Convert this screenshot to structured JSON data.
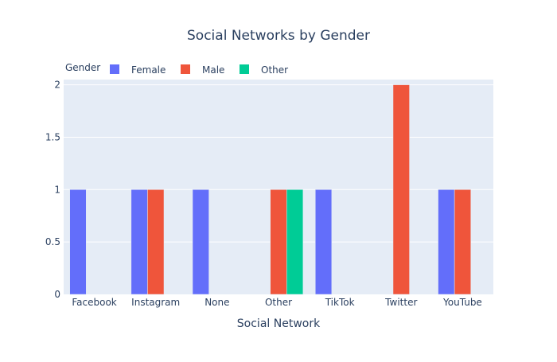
{
  "chart_data": {
    "type": "bar",
    "title": "Social Networks by Gender",
    "xlabel": "Social Network",
    "ylabel": "",
    "categories": [
      "Facebook",
      "Instagram",
      "None",
      "Other",
      "TikTok",
      "Twitter",
      "YouTube"
    ],
    "series": [
      {
        "name": "Female",
        "color": "#636efa",
        "values": [
          1,
          1,
          1,
          null,
          1,
          null,
          1
        ]
      },
      {
        "name": "Male",
        "color": "#ef553b",
        "values": [
          null,
          1,
          null,
          1,
          null,
          2,
          1
        ]
      },
      {
        "name": "Other",
        "color": "#00cc96",
        "values": [
          null,
          null,
          null,
          1,
          null,
          null,
          null
        ]
      }
    ],
    "ylim": [
      0,
      2.05
    ],
    "yticks": [
      "0",
      "0.5",
      "1",
      "1.5",
      "2"
    ],
    "legend": {
      "title": "Gender",
      "placement": "top-left",
      "orientation": "horizontal"
    },
    "grid": true,
    "plot_background": "#e5ecf6"
  }
}
